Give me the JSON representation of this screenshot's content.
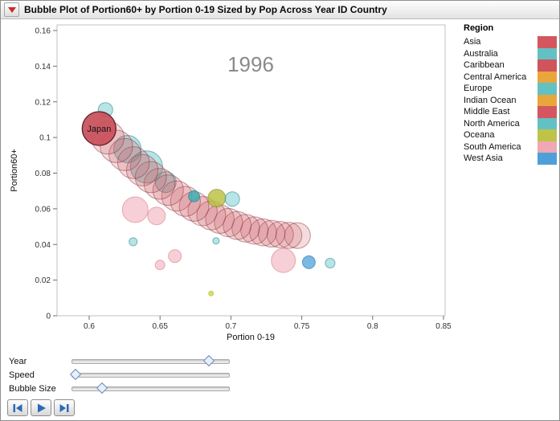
{
  "window": {
    "title": "Bubble Plot of Portion60+ by Portion 0-19 Sized by Pop Across Year ID Country"
  },
  "chart_data": {
    "type": "scatter",
    "subtype": "bubble-plot-with-trail",
    "year_label": "1996",
    "xlabel": "Portion 0-19",
    "ylabel": "Portion60+",
    "xlim": [
      0.577,
      0.851
    ],
    "ylim": [
      0,
      0.163
    ],
    "grid": false,
    "x_ticks": [
      0.6,
      0.65,
      0.7,
      0.75,
      0.8,
      0.85
    ],
    "x_tick_labels": [
      "0.6",
      "0.65",
      "0.7",
      "0.75",
      "0.8",
      "0.85"
    ],
    "y_ticks": [
      0,
      0.02,
      0.04,
      0.06,
      0.08,
      0.1,
      0.12,
      0.14,
      0.16
    ],
    "y_tick_labels": [
      "0",
      "0.02",
      "0.04",
      "0.06",
      "0.08",
      "0.1",
      "0.12",
      "0.14",
      "0.16"
    ],
    "trail": {
      "label": "Japan",
      "region": "Asia",
      "points": [
        [
          0.747,
          0.045,
          16
        ],
        [
          0.7409,
          0.0451,
          16.2
        ],
        [
          0.7348,
          0.0455,
          16.4
        ],
        [
          0.7287,
          0.046,
          16.6
        ],
        [
          0.7227,
          0.0468,
          16.8
        ],
        [
          0.7166,
          0.0478,
          17
        ],
        [
          0.7105,
          0.0491,
          17.2
        ],
        [
          0.7044,
          0.0506,
          17.4
        ],
        [
          0.6983,
          0.0523,
          17.6
        ],
        [
          0.6922,
          0.0542,
          17.8
        ],
        [
          0.6861,
          0.0563,
          18
        ],
        [
          0.68,
          0.0587,
          18.2
        ],
        [
          0.674,
          0.0613,
          18.4
        ],
        [
          0.6679,
          0.0642,
          18.6
        ],
        [
          0.6618,
          0.0672,
          18.8
        ],
        [
          0.6557,
          0.0705,
          19
        ],
        [
          0.6496,
          0.074,
          19.2
        ],
        [
          0.6435,
          0.0778,
          19.4
        ],
        [
          0.6374,
          0.0817,
          19.6
        ],
        [
          0.6313,
          0.0859,
          19.8
        ],
        [
          0.6253,
          0.0904,
          20
        ],
        [
          0.6192,
          0.095,
          20.2
        ],
        [
          0.6131,
          0.0999,
          20.4
        ]
      ],
      "head": [
        0.607,
        0.105,
        21
      ]
    },
    "bubbles_background": [
      [
        "teal",
        0.6115,
        0.1155,
        9
      ],
      [
        "teal",
        0.627,
        0.0935,
        17
      ],
      [
        "teal",
        0.6405,
        0.0835,
        20
      ],
      [
        "teal",
        0.654,
        0.075,
        13
      ],
      [
        "pink",
        0.6325,
        0.0595,
        16
      ],
      [
        "pink",
        0.6475,
        0.056,
        11
      ],
      [
        "pink",
        0.65,
        0.0285,
        6
      ],
      [
        "pink",
        0.6605,
        0.0335,
        8
      ],
      [
        "teal",
        0.631,
        0.0415,
        5
      ],
      [
        "pink",
        0.737,
        0.031,
        15
      ]
    ],
    "bubbles_foreground": [
      [
        "tealSolid",
        0.674,
        0.067,
        7
      ],
      [
        "olive",
        0.69,
        0.066,
        11
      ],
      [
        "teal",
        0.701,
        0.0655,
        9
      ],
      [
        "blue",
        0.755,
        0.03,
        8
      ],
      [
        "teal",
        0.77,
        0.0295,
        6
      ],
      [
        "yellow",
        0.686,
        0.0125,
        3
      ],
      [
        "teal",
        0.6895,
        0.042,
        4
      ]
    ],
    "styles": {
      "teal": {
        "fill": "#58BFC2",
        "stroke": "#2F9396",
        "fo": 0.42
      },
      "tealSolid": {
        "fill": "#3FAFB4",
        "stroke": "#28888C",
        "fo": 0.85
      },
      "pink": {
        "fill": "#F0A8B4",
        "stroke": "#DB8293",
        "fo": 0.55
      },
      "olive": {
        "fill": "#B9BE3C",
        "stroke": "#83892B",
        "fo": 0.8
      },
      "blue": {
        "fill": "#4FA0D8",
        "stroke": "#2E7AB3",
        "fo": 0.75
      },
      "yellow": {
        "fill": "#D8DB52",
        "stroke": "#AFB232",
        "fo": 0.9
      },
      "trail": {
        "fill": "#C8505A",
        "stroke": "#8C2D38",
        "fo": 0.2
      },
      "head": {
        "fill": "#C8505A",
        "stroke": "#5F1F26",
        "fo": 0.93,
        "sw": 1.3
      }
    }
  },
  "legend": {
    "title": "Region",
    "items": [
      {
        "label": "Asia",
        "color": "#D4565E"
      },
      {
        "label": "Australia",
        "color": "#63C1C4"
      },
      {
        "label": "Caribbean",
        "color": "#D0545C"
      },
      {
        "label": "Central America",
        "color": "#E9A63A"
      },
      {
        "label": "Europe",
        "color": "#63C1C4"
      },
      {
        "label": "Indian Ocean",
        "color": "#E9A63A"
      },
      {
        "label": "Middle East",
        "color": "#D4565E"
      },
      {
        "label": "North America",
        "color": "#63C1C4"
      },
      {
        "label": "Oceana",
        "color": "#BFC348"
      },
      {
        "label": "South America",
        "color": "#F0A8B4"
      },
      {
        "label": "West Asia",
        "color": "#4FA0D8"
      }
    ]
  },
  "controls": {
    "sliders": [
      {
        "label": "Year",
        "value_pct": 87
      },
      {
        "label": "Speed",
        "value_pct": 2
      },
      {
        "label": "Bubble Size",
        "value_pct": 19
      }
    ],
    "buttons": [
      {
        "icon": "skip-back-icon"
      },
      {
        "icon": "play-icon"
      },
      {
        "icon": "step-forward-icon"
      }
    ],
    "accent_icon_color": "#2A6BB5"
  }
}
